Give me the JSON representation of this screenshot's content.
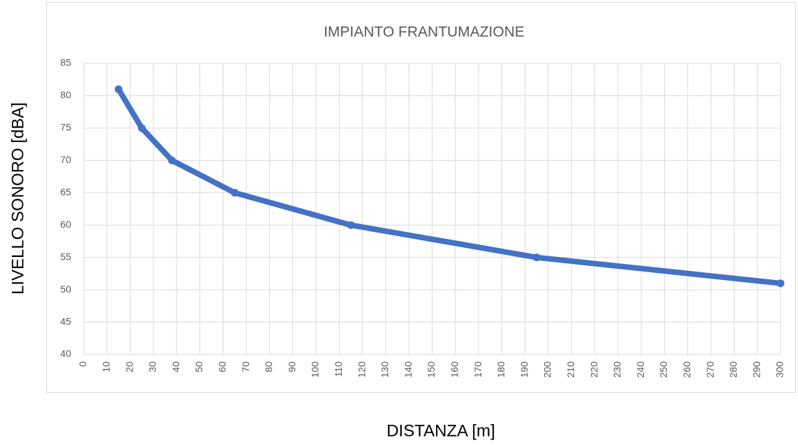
{
  "chart_data": {
    "type": "line",
    "title": "IMPIANTO FRANTUMAZIONE",
    "xlabel": "DISTANZA [m]",
    "ylabel": "LIVELLO SONORO [dBA]",
    "x": [
      15,
      25,
      38,
      65,
      115,
      195,
      300
    ],
    "values": [
      81,
      75,
      70,
      65,
      60,
      55,
      51
    ],
    "color": "#4472c4",
    "xlim": [
      0,
      300
    ],
    "xticks": [
      0,
      10,
      20,
      30,
      40,
      50,
      60,
      70,
      80,
      90,
      100,
      110,
      120,
      130,
      140,
      150,
      160,
      170,
      180,
      190,
      200,
      210,
      220,
      230,
      240,
      250,
      260,
      270,
      280,
      290,
      300
    ],
    "ylim": [
      40,
      85
    ],
    "yticks": [
      40,
      45,
      50,
      55,
      60,
      65,
      70,
      75,
      80,
      85
    ],
    "grid": true
  }
}
